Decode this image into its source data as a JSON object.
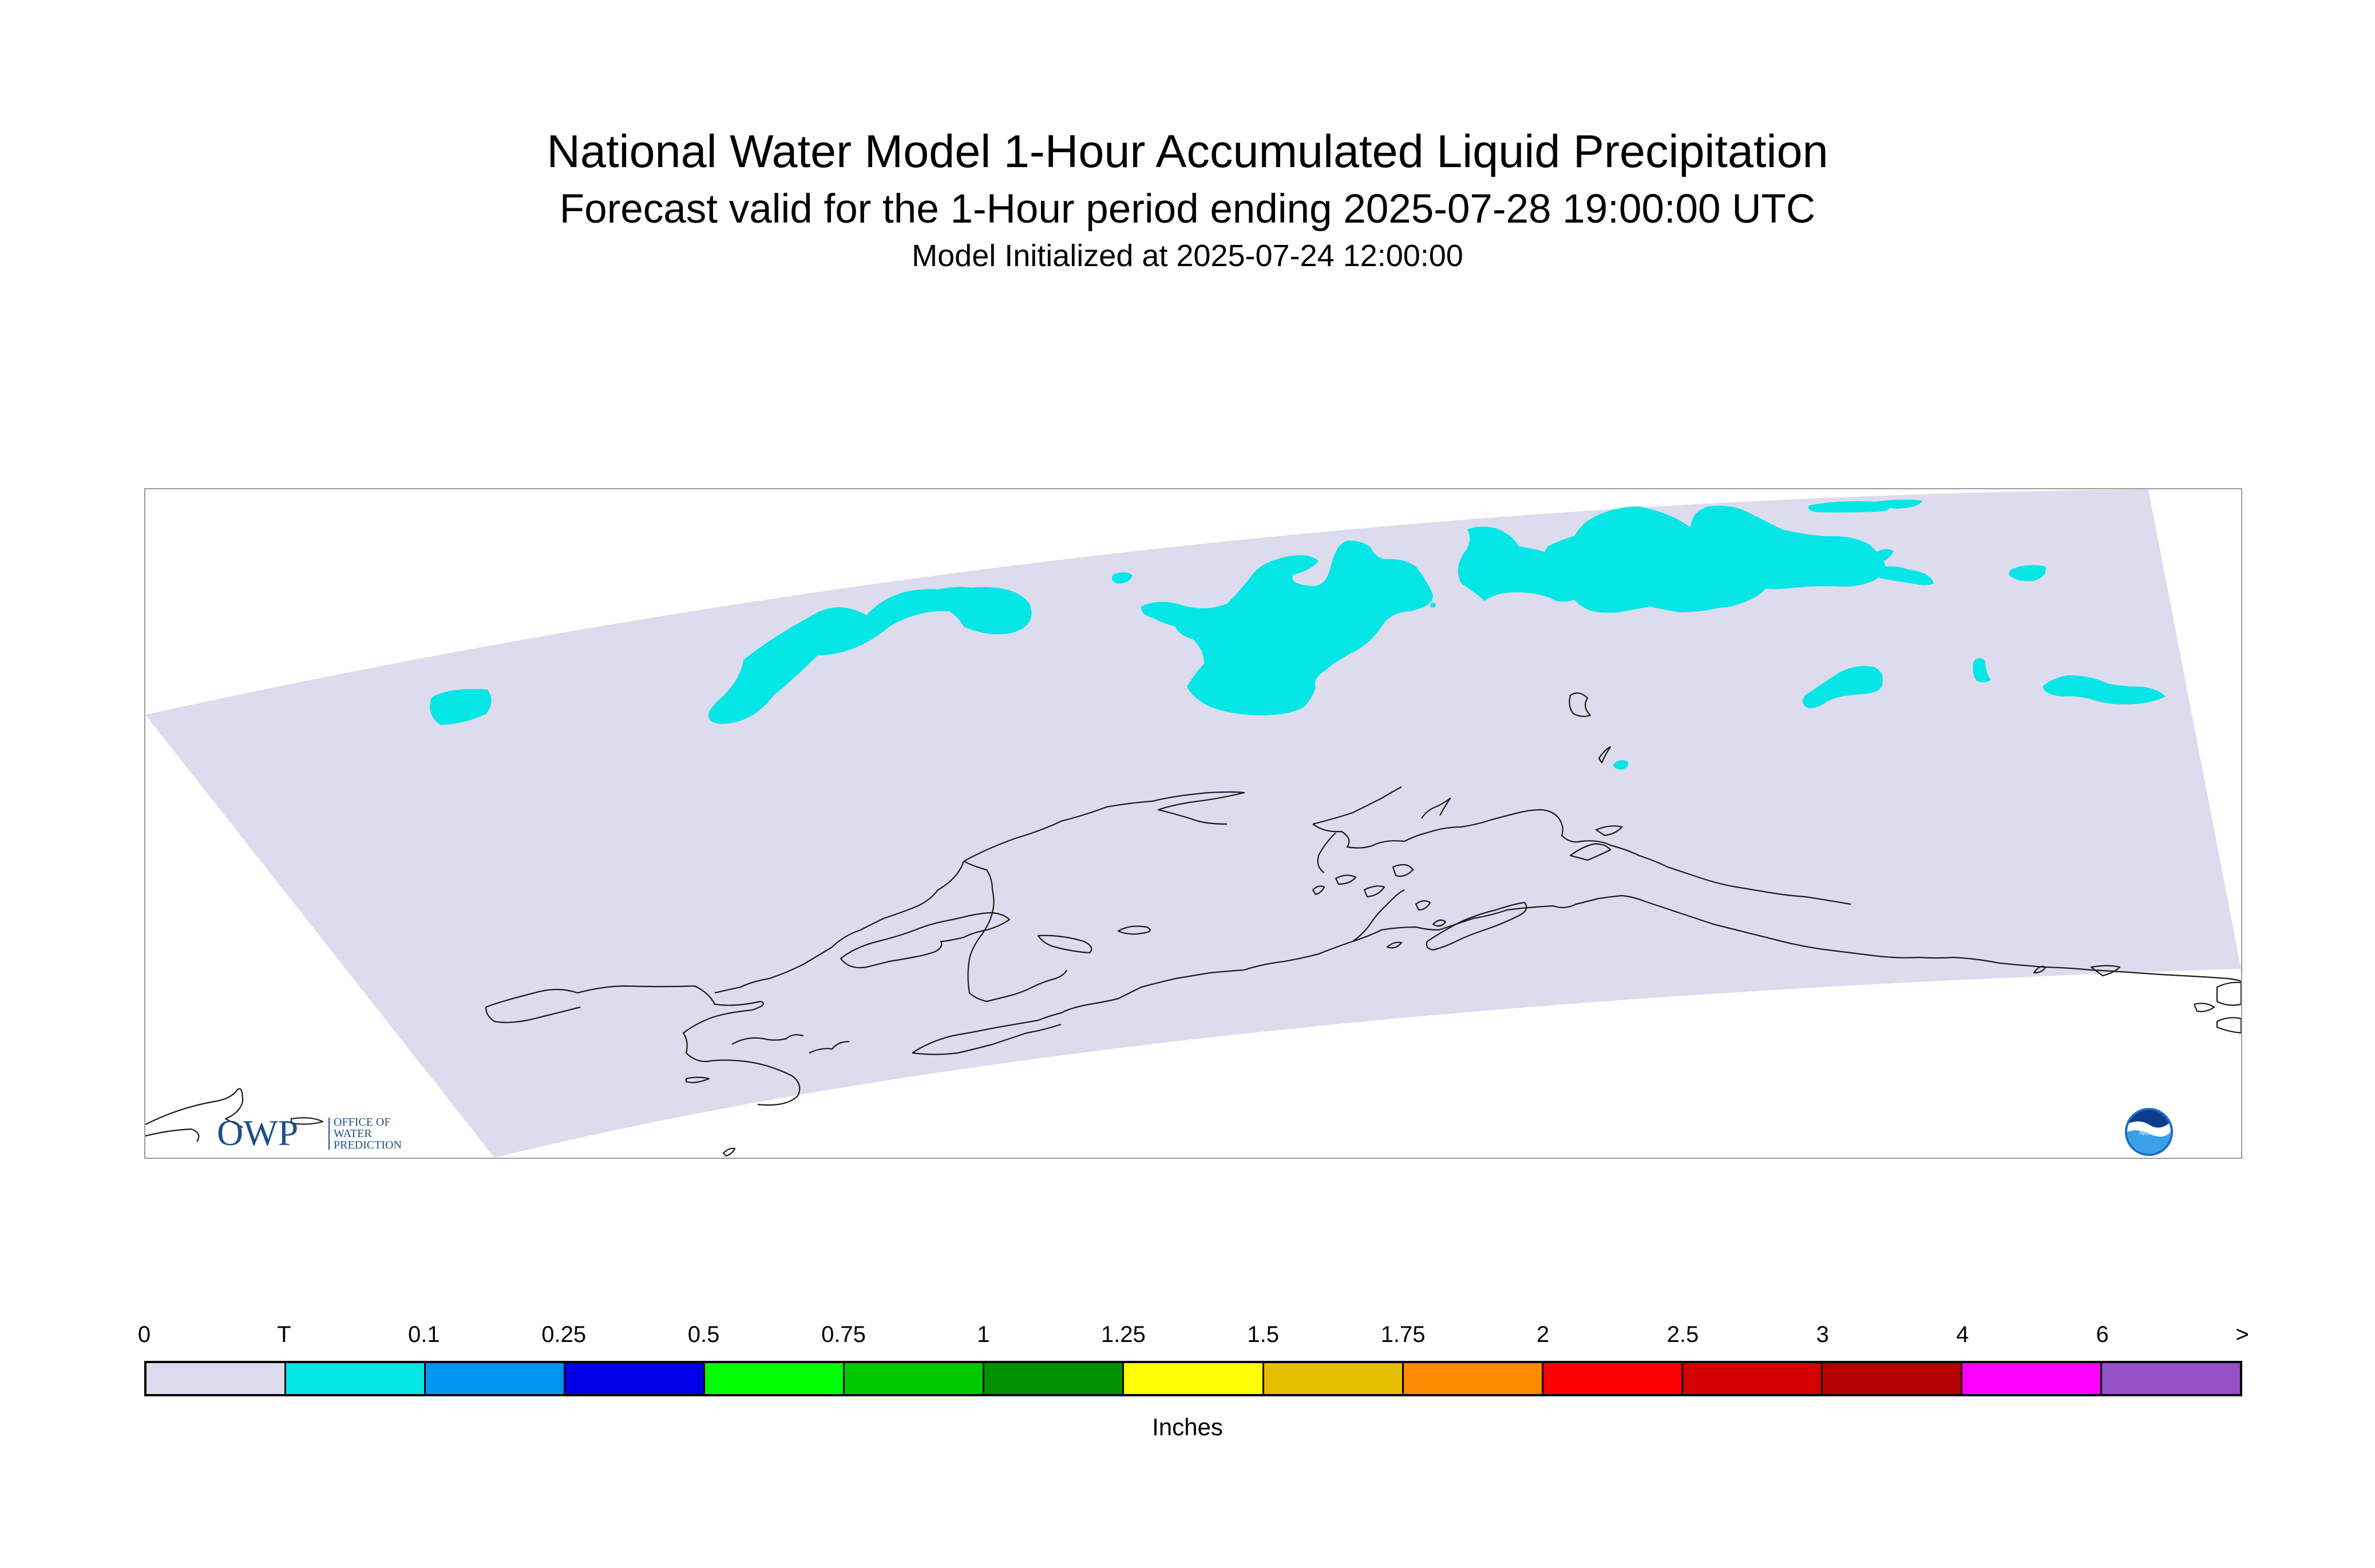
{
  "title": "National Water Model 1-Hour Accumulated Liquid Precipitation",
  "subtitle": "Forecast valid for the 1-Hour period ending 2025-07-28 19:00:00 UTC",
  "init_text": "Model Initialized at 2025-07-24 12:00:00",
  "map": {
    "domain_color": "#dcdcee",
    "precip_color": "#05e6e6",
    "coastline_color": "#1a1a1a"
  },
  "logos": {
    "owp": {
      "mark": "OWP",
      "lines": [
        "OFFICE OF",
        "WATER",
        "PREDICTION"
      ],
      "color": "#1f4e8c"
    },
    "noaa": {
      "text": "NOAA",
      "icon": "noaa-emblem-icon"
    }
  },
  "legend": {
    "labels": [
      "0",
      "T",
      "0.1",
      "0.25",
      "0.5",
      "0.75",
      "1",
      "1.25",
      "1.5",
      "1.75",
      "2",
      "2.5",
      "3",
      "4",
      "6",
      ">"
    ],
    "colors": [
      "#dcdcee",
      "#05e6e6",
      "#0096f0",
      "#0000e6",
      "#00ff00",
      "#00c800",
      "#009100",
      "#ffff00",
      "#e6be00",
      "#ff8c00",
      "#ff0000",
      "#d20000",
      "#b40000",
      "#ff00ff",
      "#9650c8"
    ],
    "units": "Inches"
  }
}
